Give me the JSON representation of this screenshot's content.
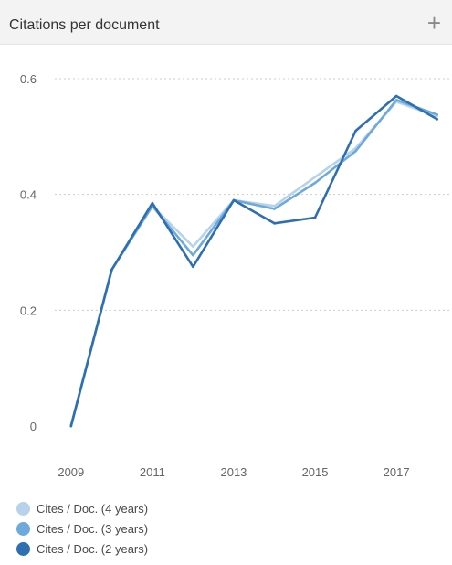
{
  "header": {
    "title": "Citations per document",
    "expand_icon": "plus-icon",
    "expand_glyph": "+"
  },
  "chart_data": {
    "type": "line",
    "x": [
      2009,
      2010,
      2011,
      2012,
      2013,
      2014,
      2015,
      2016,
      2017,
      2018
    ],
    "xticks": [
      "2009",
      "2011",
      "2013",
      "2015",
      "2017"
    ],
    "yticks": [
      "0",
      "0.2",
      "0.4",
      "0.6"
    ],
    "ylim": [
      0,
      0.6
    ],
    "grid": true,
    "legend_position": "bottom-left",
    "series": [
      {
        "name": "Cites / Doc. (4 years)",
        "color": "#b7d3ec",
        "values": [
          0,
          0.27,
          0.38,
          0.31,
          0.39,
          0.38,
          0.43,
          0.48,
          0.56,
          0.535
        ]
      },
      {
        "name": "Cites / Doc. (3 years)",
        "color": "#6ea9dc",
        "values": [
          0,
          0.27,
          0.38,
          0.295,
          0.39,
          0.375,
          0.42,
          0.475,
          0.563,
          0.538
        ]
      },
      {
        "name": "Cites / Doc. (2 years)",
        "color": "#2d6fb0",
        "values": [
          0,
          0.27,
          0.385,
          0.275,
          0.39,
          0.35,
          0.36,
          0.51,
          0.57,
          0.53
        ]
      }
    ]
  }
}
